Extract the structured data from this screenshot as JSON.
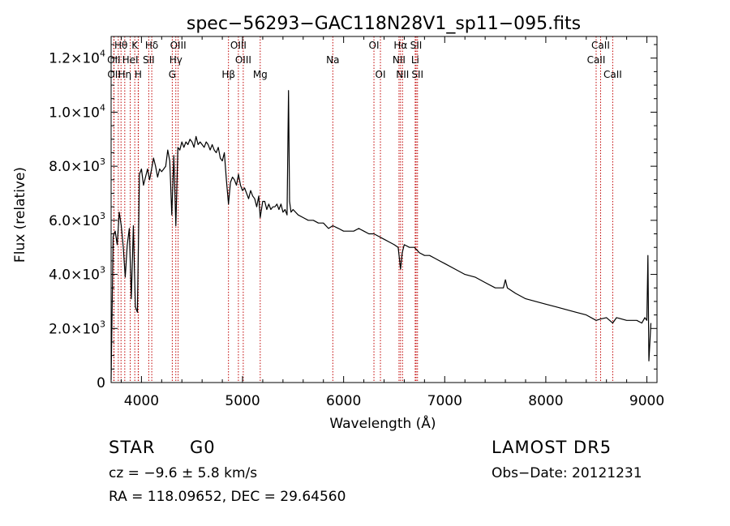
{
  "chart_data": {
    "type": "line",
    "title": "spec−56293−GAC118N28V1_sp11−095.fits",
    "xlabel": "Wavelength (Å)",
    "ylabel": "Flux (relative)",
    "xlim": [
      3700,
      9100
    ],
    "ylim": [
      0,
      12800
    ],
    "x_ticks": [
      4000,
      5000,
      6000,
      7000,
      8000,
      9000
    ],
    "y_ticks": [
      {
        "value": 0,
        "label": "0",
        "exp": ""
      },
      {
        "value": 2000,
        "label": "2.0×10",
        "exp": "3"
      },
      {
        "value": 4000,
        "label": "4.0×10",
        "exp": "3"
      },
      {
        "value": 6000,
        "label": "6.0×10",
        "exp": "3"
      },
      {
        "value": 8000,
        "label": "8.0×10",
        "exp": "3"
      },
      {
        "value": 10000,
        "label": "1.0×10",
        "exp": "4"
      },
      {
        "value": 12000,
        "label": "1.2×10",
        "exp": "4"
      }
    ],
    "series": [
      {
        "x": [
          3700,
          3720,
          3740,
          3760,
          3780,
          3800,
          3820,
          3840,
          3860,
          3880,
          3900,
          3920,
          3940,
          3960,
          3970,
          3980,
          4000,
          4020,
          4040,
          4060,
          4080,
          4100,
          4120,
          4140,
          4160,
          4180,
          4200,
          4220,
          4240,
          4260,
          4280,
          4300,
          4320,
          4340,
          4360,
          4380,
          4400,
          4420,
          4440,
          4460,
          4480,
          4500,
          4520,
          4540,
          4560,
          4580,
          4600,
          4620,
          4640,
          4660,
          4680,
          4700,
          4720,
          4740,
          4760,
          4780,
          4800,
          4820,
          4840,
          4861,
          4880,
          4900,
          4920,
          4940,
          4960,
          4980,
          5000,
          5020,
          5040,
          5060,
          5080,
          5100,
          5120,
          5140,
          5160,
          5175,
          5200,
          5220,
          5240,
          5260,
          5280,
          5300,
          5320,
          5340,
          5360,
          5380,
          5400,
          5420,
          5440,
          5455,
          5465,
          5480,
          5500,
          5550,
          5600,
          5650,
          5700,
          5750,
          5800,
          5850,
          5893,
          5950,
          6000,
          6050,
          6100,
          6150,
          6200,
          6250,
          6300,
          6350,
          6400,
          6450,
          6500,
          6540,
          6563,
          6580,
          6600,
          6650,
          6700,
          6750,
          6800,
          6850,
          6900,
          6950,
          7000,
          7100,
          7200,
          7300,
          7400,
          7500,
          7580,
          7600,
          7620,
          7700,
          7800,
          7900,
          8000,
          8100,
          8200,
          8300,
          8400,
          8498,
          8542,
          8600,
          8662,
          8700,
          8800,
          8900,
          8950,
          8980,
          9000,
          9010,
          9020,
          9040
        ],
        "values": [
          100,
          5400,
          5600,
          5100,
          6300,
          5800,
          5000,
          3900,
          5100,
          5700,
          3100,
          5800,
          2800,
          2600,
          5200,
          7700,
          7900,
          7300,
          7600,
          7900,
          7500,
          7900,
          8300,
          8000,
          7600,
          7900,
          7800,
          7900,
          8000,
          8600,
          8200,
          6200,
          8400,
          5800,
          8700,
          8600,
          8900,
          8700,
          8900,
          8800,
          9000,
          8900,
          8700,
          9100,
          8800,
          8900,
          8800,
          8700,
          8900,
          8800,
          8600,
          8800,
          8600,
          8500,
          8700,
          8300,
          8200,
          8500,
          7500,
          6600,
          7400,
          7600,
          7500,
          7300,
          7700,
          7300,
          7100,
          7200,
          7000,
          6800,
          7100,
          6900,
          6800,
          6500,
          6900,
          6100,
          6700,
          6700,
          6400,
          6600,
          6400,
          6500,
          6500,
          6600,
          6400,
          6600,
          6300,
          6400,
          6200,
          10800,
          6700,
          6300,
          6400,
          6200,
          6100,
          6000,
          6000,
          5900,
          5900,
          5700,
          5800,
          5700,
          5600,
          5600,
          5600,
          5700,
          5600,
          5500,
          5500,
          5400,
          5300,
          5200,
          5100,
          5000,
          4200,
          4800,
          5100,
          5000,
          5000,
          4800,
          4700,
          4700,
          4600,
          4500,
          4400,
          4200,
          4000,
          3900,
          3700,
          3500,
          3500,
          3800,
          3500,
          3300,
          3100,
          3000,
          2900,
          2800,
          2700,
          2600,
          2500,
          2300,
          2350,
          2400,
          2200,
          2400,
          2300,
          2300,
          2200,
          2400,
          2300,
          4700,
          800,
          2200
        ]
      }
    ],
    "lines": [
      {
        "label": "Hθ",
        "x": 3798,
        "row": 0
      },
      {
        "label": "K",
        "x": 3934,
        "row": 0
      },
      {
        "label": "Hδ",
        "x": 4102,
        "row": 0
      },
      {
        "label": "OIII",
        "x": 4363,
        "row": 0
      },
      {
        "label": "OIII",
        "x": 4959,
        "row": 0
      },
      {
        "label": "OI",
        "x": 6300,
        "row": 0
      },
      {
        "label": "Hα",
        "x": 6563,
        "row": 0
      },
      {
        "label": "SII",
        "x": 6717,
        "row": 0
      },
      {
        "label": "CaII",
        "x": 8542,
        "row": 0
      },
      {
        "label": "OII",
        "x": 3727,
        "row": 1
      },
      {
        "label": "HeI",
        "x": 3889,
        "row": 1
      },
      {
        "label": "SII",
        "x": 4072,
        "row": 1
      },
      {
        "label": "Hγ",
        "x": 4340,
        "row": 1
      },
      {
        "label": "OIII",
        "x": 5007,
        "row": 1
      },
      {
        "label": "Na",
        "x": 5893,
        "row": 1
      },
      {
        "label": "NII",
        "x": 6548,
        "row": 1
      },
      {
        "label": "Li",
        "x": 6708,
        "row": 1
      },
      {
        "label": "CaII",
        "x": 8498,
        "row": 1
      },
      {
        "label": "OII",
        "x": 3729,
        "row": 2
      },
      {
        "label": "Hη",
        "x": 3835,
        "row": 2
      },
      {
        "label": "H",
        "x": 3968,
        "row": 2
      },
      {
        "label": "G",
        "x": 4305,
        "row": 2
      },
      {
        "label": "Hβ",
        "x": 4861,
        "row": 2
      },
      {
        "label": "Mg",
        "x": 5175,
        "row": 2
      },
      {
        "label": "OI",
        "x": 6364,
        "row": 2
      },
      {
        "label": "NII",
        "x": 6583,
        "row": 2
      },
      {
        "label": "SII",
        "x": 6731,
        "row": 2
      },
      {
        "label": "CaII",
        "x": 8662,
        "row": 2
      }
    ],
    "extra_lines_x": [
      3771,
      3889,
      3970,
      4340,
      4102,
      4861,
      6300,
      6563,
      6717,
      8542
    ]
  },
  "footer": {
    "object_type": "STAR",
    "object_class": "G0",
    "survey": "LAMOST DR5",
    "cz": "cz = −9.6 ± 5.8 km/s",
    "obs_date": "Obs−Date: 20121231",
    "radec": "RA = 118.09652, DEC =  29.64560"
  }
}
